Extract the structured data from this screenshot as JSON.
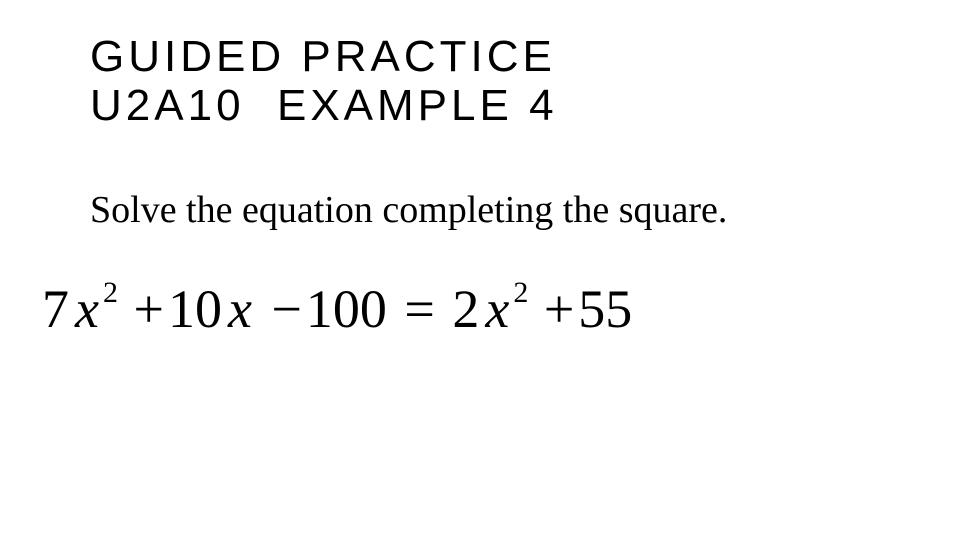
{
  "heading": {
    "line1": "GUIDED PRACTICE",
    "line2": "U2A10  EXAMPLE 4",
    "font_size": 44,
    "letter_spacing": 4,
    "color": "#000000",
    "font_family": "Arial"
  },
  "instruction": {
    "text": "Solve the equation completing the square.",
    "font_size": 38,
    "color": "#000000",
    "font_family": "Times New Roman"
  },
  "equation": {
    "plain": "7x^2 + 10x - 100 = 2x^2 + 55",
    "lhs": {
      "terms": [
        {
          "coef": "7",
          "var": "x",
          "exp": "2"
        },
        {
          "op": "+",
          "coef": "10",
          "var": "x"
        },
        {
          "op": "−",
          "coef": "100"
        }
      ]
    },
    "rhs": {
      "terms": [
        {
          "coef": "2",
          "var": "x",
          "exp": "2"
        },
        {
          "op": "+",
          "coef": "55"
        }
      ]
    },
    "parts": {
      "c1": "7",
      "v1": "x",
      "e1": "2",
      "op1": "+",
      "c2": "10",
      "v2": "x",
      "op2": "−",
      "c3": "100",
      "eq": "=",
      "c4": "2",
      "v3": "x",
      "e2": "2",
      "op3": "+",
      "c5": "55"
    },
    "font_size": 54,
    "color": "#000000",
    "font_family": "Times New Roman"
  },
  "background_color": "#ffffff",
  "slide_width": 960,
  "slide_height": 540
}
